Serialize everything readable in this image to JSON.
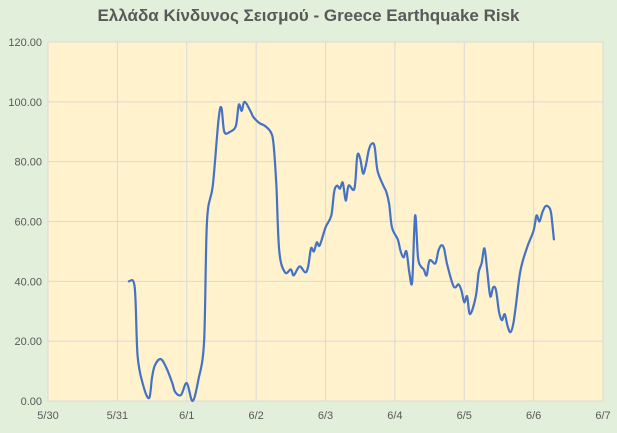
{
  "chart_data": {
    "type": "line",
    "title": "Ελλάδα Κίνδυνος Σεισμού - Greece Earthquake Risk",
    "xlabel": "",
    "ylabel": "",
    "xlim": [
      "5/30",
      "6/7"
    ],
    "ylim": [
      0,
      120
    ],
    "x_ticks": [
      "5/30",
      "5/31",
      "6/1",
      "6/2",
      "6/3",
      "6/4",
      "6/5",
      "6/6",
      "6/7"
    ],
    "y_ticks": [
      "0.00",
      "20.00",
      "40.00",
      "60.00",
      "80.00",
      "100.00",
      "120.00"
    ],
    "grid": true,
    "series": [
      {
        "color": "#4472c4",
        "points": [
          [
            "2024-05-31 04:00",
            40
          ],
          [
            "2024-05-31 06:00",
            38
          ],
          [
            "2024-05-31 07:00",
            15
          ],
          [
            "2024-05-31 09:00",
            5
          ],
          [
            "2024-05-31 11:00",
            1
          ],
          [
            "2024-05-31 12:00",
            8
          ],
          [
            "2024-05-31 13:00",
            12
          ],
          [
            "2024-05-31 15:00",
            14
          ],
          [
            "2024-05-31 17:00",
            11
          ],
          [
            "2024-05-31 19:00",
            6
          ],
          [
            "2024-05-31 20:00",
            3
          ],
          [
            "2024-05-31 22:00",
            2
          ],
          [
            "2024-06-01 00:00",
            6
          ],
          [
            "2024-06-01 02:00",
            0
          ],
          [
            "2024-06-01 04:00",
            7
          ],
          [
            "2024-06-01 06:00",
            20
          ],
          [
            "2024-06-01 07:00",
            60
          ],
          [
            "2024-06-01 09:00",
            72
          ],
          [
            "2024-06-01 11:00",
            94
          ],
          [
            "2024-06-01 12:00",
            98
          ],
          [
            "2024-06-01 13:00",
            90
          ],
          [
            "2024-06-01 15:00",
            90
          ],
          [
            "2024-06-01 17:00",
            92
          ],
          [
            "2024-06-01 18:00",
            99
          ],
          [
            "2024-06-01 19:00",
            97
          ],
          [
            "2024-06-01 20:00",
            100
          ],
          [
            "2024-06-01 22:00",
            97
          ],
          [
            "2024-06-01 23:00",
            95
          ],
          [
            "2024-06-02 01:00",
            93
          ],
          [
            "2024-06-02 03:00",
            92
          ],
          [
            "2024-06-02 05:00",
            90
          ],
          [
            "2024-06-02 06:00",
            86
          ],
          [
            "2024-06-02 07:00",
            72
          ],
          [
            "2024-06-02 08:00",
            50
          ],
          [
            "2024-06-02 10:00",
            43
          ],
          [
            "2024-06-02 12:00",
            44
          ],
          [
            "2024-06-02 13:00",
            42
          ],
          [
            "2024-06-02 15:00",
            45
          ],
          [
            "2024-06-02 17:00",
            43
          ],
          [
            "2024-06-02 18:00",
            45
          ],
          [
            "2024-06-02 19:00",
            51
          ],
          [
            "2024-06-02 20:00",
            50
          ],
          [
            "2024-06-02 21:00",
            53
          ],
          [
            "2024-06-02 22:00",
            52
          ],
          [
            "2024-06-03 00:00",
            58
          ],
          [
            "2024-06-03 02:00",
            62
          ],
          [
            "2024-06-03 03:00",
            70
          ],
          [
            "2024-06-03 04:00",
            72
          ],
          [
            "2024-06-03 05:00",
            71
          ],
          [
            "2024-06-03 06:00",
            73
          ],
          [
            "2024-06-03 07:00",
            67
          ],
          [
            "2024-06-03 08:00",
            72
          ],
          [
            "2024-06-03 10:00",
            71
          ],
          [
            "2024-06-03 11:00",
            82
          ],
          [
            "2024-06-03 12:00",
            81
          ],
          [
            "2024-06-03 13:00",
            76
          ],
          [
            "2024-06-03 14:00",
            79
          ],
          [
            "2024-06-03 15:00",
            84
          ],
          [
            "2024-06-03 16:00",
            86
          ],
          [
            "2024-06-03 17:00",
            85
          ],
          [
            "2024-06-03 18:00",
            77
          ],
          [
            "2024-06-03 20:00",
            72
          ],
          [
            "2024-06-03 21:00",
            70
          ],
          [
            "2024-06-03 22:00",
            66
          ],
          [
            "2024-06-03 23:00",
            58
          ],
          [
            "2024-06-04 01:00",
            54
          ],
          [
            "2024-06-04 02:00",
            50
          ],
          [
            "2024-06-04 03:00",
            48
          ],
          [
            "2024-06-04 04:00",
            50
          ],
          [
            "2024-06-04 05:00",
            43
          ],
          [
            "2024-06-04 06:00",
            40
          ],
          [
            "2024-06-04 07:00",
            62
          ],
          [
            "2024-06-04 08:00",
            48
          ],
          [
            "2024-06-04 09:00",
            45
          ],
          [
            "2024-06-04 10:00",
            44
          ],
          [
            "2024-06-04 11:00",
            42
          ],
          [
            "2024-06-04 12:00",
            47
          ],
          [
            "2024-06-04 14:00",
            46
          ],
          [
            "2024-06-04 15:00",
            50
          ],
          [
            "2024-06-04 16:00",
            52
          ],
          [
            "2024-06-04 17:00",
            51
          ],
          [
            "2024-06-04 18:00",
            46
          ],
          [
            "2024-06-04 20:00",
            39
          ],
          [
            "2024-06-04 21:00",
            38
          ],
          [
            "2024-06-04 22:00",
            39
          ],
          [
            "2024-06-04 23:00",
            37
          ],
          [
            "2024-06-05 00:00",
            33
          ],
          [
            "2024-06-05 01:00",
            35
          ],
          [
            "2024-06-05 02:00",
            29
          ],
          [
            "2024-06-05 04:00",
            35
          ],
          [
            "2024-06-05 05:00",
            43
          ],
          [
            "2024-06-05 06:00",
            46
          ],
          [
            "2024-06-05 07:00",
            51
          ],
          [
            "2024-06-05 08:00",
            43
          ],
          [
            "2024-06-05 09:00",
            35
          ],
          [
            "2024-06-05 10:00",
            38
          ],
          [
            "2024-06-05 11:00",
            37
          ],
          [
            "2024-06-05 12:00",
            30
          ],
          [
            "2024-06-05 13:00",
            27
          ],
          [
            "2024-06-05 14:00",
            29
          ],
          [
            "2024-06-05 15:00",
            25
          ],
          [
            "2024-06-05 16:00",
            23
          ],
          [
            "2024-06-05 17:00",
            26
          ],
          [
            "2024-06-05 18:00",
            33
          ],
          [
            "2024-06-05 19:00",
            41
          ],
          [
            "2024-06-05 20:00",
            46
          ],
          [
            "2024-06-05 22:00",
            52
          ],
          [
            "2024-06-06 00:00",
            57
          ],
          [
            "2024-06-06 01:00",
            62
          ],
          [
            "2024-06-06 02:00",
            60
          ],
          [
            "2024-06-06 03:00",
            63
          ],
          [
            "2024-06-06 04:00",
            65
          ],
          [
            "2024-06-06 05:00",
            65
          ],
          [
            "2024-06-06 06:00",
            63
          ],
          [
            "2024-06-06 07:00",
            54
          ]
        ]
      }
    ]
  },
  "colors": {
    "page_background": "#e2efda",
    "plot_background": "#fff2cc",
    "gridline": "#d9d9d9",
    "line": "#4472c4",
    "text": "#595959"
  }
}
